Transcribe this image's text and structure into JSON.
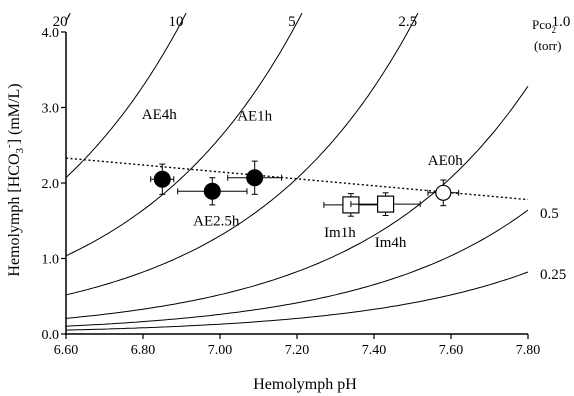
{
  "chart_data": {
    "type": "scatter",
    "xlabel": "Hemolymph pH",
    "ylabel_parts": {
      "base": "Hemolymph [HCO",
      "sub": "3",
      "sup": "-",
      "tail": "]  (mM/L)"
    },
    "xlim": [
      6.6,
      7.8
    ],
    "ylim": [
      0.0,
      4.0
    ],
    "x_ticks": [
      6.6,
      6.8,
      7.0,
      7.2,
      7.4,
      7.6,
      7.8
    ],
    "x_tick_labels": [
      "6.60",
      "6.80",
      "7.00",
      "7.20",
      "7.40",
      "7.60",
      "7.80"
    ],
    "y_ticks": [
      0.0,
      1.0,
      2.0,
      3.0,
      4.0
    ],
    "y_tick_labels": [
      "0.0",
      "1.0",
      "2.0",
      "3.0",
      "4.0"
    ],
    "grid": false,
    "pco2_header": {
      "main": "Pco",
      "sub": "2",
      "unit": "(torr)"
    },
    "isopleths": [
      {
        "label": "20",
        "pco2": 20
      },
      {
        "label": "10",
        "pco2": 10
      },
      {
        "label": "5",
        "pco2": 5
      },
      {
        "label": "2.5",
        "pco2": 2.5
      },
      {
        "label": "1.0",
        "pco2": 1.0
      },
      {
        "label": "0.5",
        "pco2": 0.5
      },
      {
        "label": "0.25",
        "pco2": 0.25
      }
    ],
    "buffer_line": {
      "x": [
        6.6,
        7.8
      ],
      "y": [
        2.33,
        1.78
      ],
      "style": "dotted"
    },
    "series": [
      {
        "marker": "filled-circle",
        "points": [
          {
            "label": "AE4h",
            "x": 6.85,
            "y": 2.05,
            "xerr": 0.03,
            "yerr": 0.2
          },
          {
            "label": "AE2.5h",
            "x": 6.98,
            "y": 1.89,
            "xerr": 0.09,
            "yerr": 0.18
          },
          {
            "label": "AE1h",
            "x": 7.09,
            "y": 2.07,
            "xerr": 0.07,
            "yerr": 0.22
          }
        ]
      },
      {
        "marker": "open-square",
        "points": [
          {
            "label": "Im1h",
            "x": 7.34,
            "y": 1.71,
            "xerr": 0.07,
            "yerr": 0.15
          },
          {
            "label": "Im4h",
            "x": 7.43,
            "y": 1.72,
            "xerr": 0.09,
            "yerr": 0.15
          }
        ]
      },
      {
        "marker": "open-circle",
        "points": [
          {
            "label": "AE0h",
            "x": 7.58,
            "y": 1.87,
            "xerr": 0.04,
            "yerr": 0.17
          }
        ]
      }
    ]
  }
}
